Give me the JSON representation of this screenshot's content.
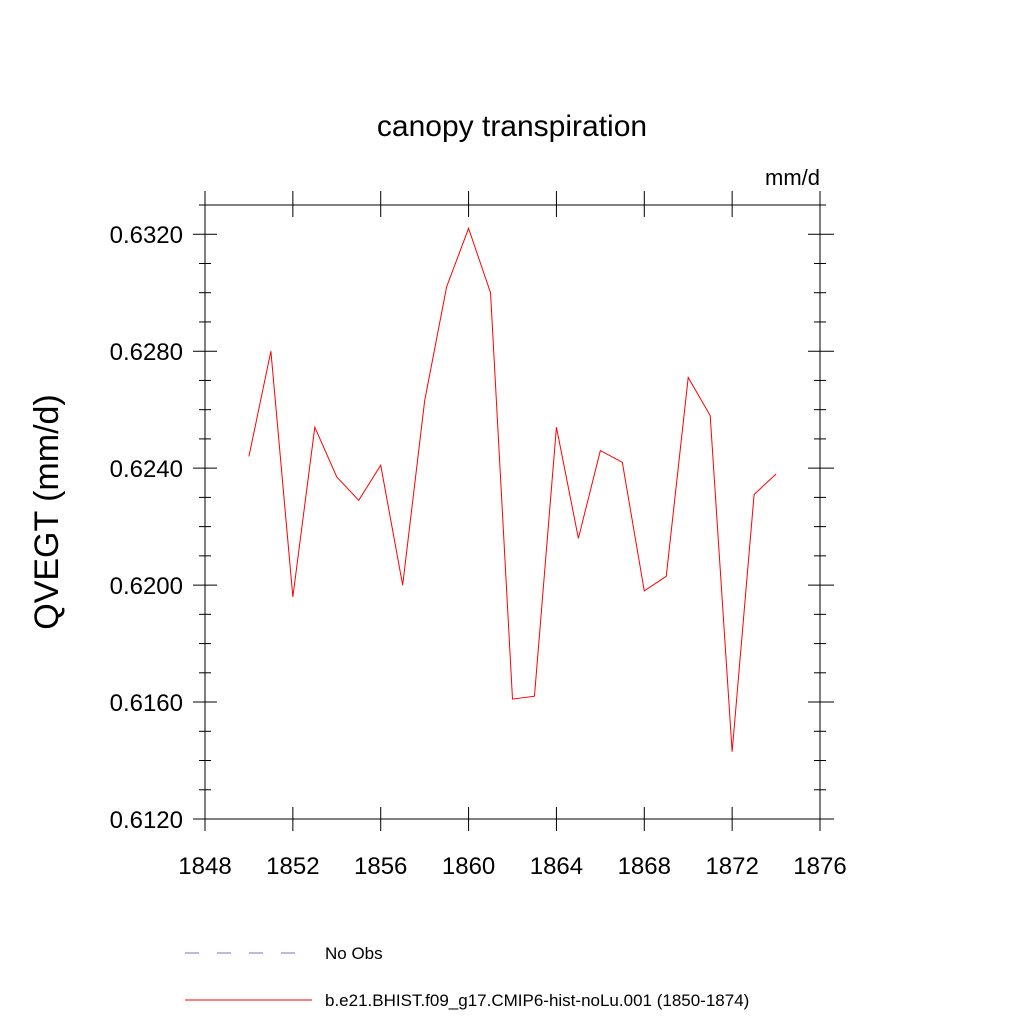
{
  "chart_data": {
    "type": "line",
    "title": "canopy transpiration",
    "units": "mm/d",
    "ylabel": "QVEGT  (mm/d)",
    "xlabel": "",
    "xlim": [
      1848,
      1876
    ],
    "ylim": [
      0.612,
      0.633
    ],
    "x_ticks": [
      1848,
      1852,
      1856,
      1860,
      1864,
      1868,
      1872,
      1876
    ],
    "x_tick_labels": [
      "1848",
      "1852",
      "1856",
      "1860",
      "1864",
      "1868",
      "1872",
      "1876"
    ],
    "y_ticks": [
      0.612,
      0.616,
      0.62,
      0.624,
      0.628,
      0.632
    ],
    "y_tick_labels": [
      "0.6120",
      "0.6160",
      "0.6200",
      "0.6240",
      "0.6280",
      "0.6320"
    ],
    "grid": false,
    "legend_position": "bottom",
    "series": [
      {
        "name": "b.e21.BHIST.f09_g17.CMIP6-hist-noLu.001 (1850-1874)",
        "color": "#ff0000",
        "style": "solid",
        "x": [
          1850,
          1851,
          1852,
          1853,
          1854,
          1855,
          1856,
          1857,
          1858,
          1859,
          1860,
          1861,
          1862,
          1863,
          1864,
          1865,
          1866,
          1867,
          1868,
          1869,
          1870,
          1871,
          1872,
          1873,
          1874
        ],
        "values": [
          0.6244,
          0.628,
          0.6196,
          0.6254,
          0.6237,
          0.6229,
          0.6241,
          0.62,
          0.6263,
          0.6302,
          0.6322,
          0.63,
          0.6161,
          0.6162,
          0.6254,
          0.6216,
          0.6246,
          0.6242,
          0.6198,
          0.6203,
          0.6271,
          0.6258,
          0.6143,
          0.6231,
          0.6238
        ]
      }
    ],
    "legend": [
      {
        "label": "No Obs",
        "color": "#7b6fd0",
        "style": "dashed"
      },
      {
        "label": "b.e21.BHIST.f09_g17.CMIP6-hist-noLu.001 (1850-1874)",
        "color": "#ff0000",
        "style": "solid"
      }
    ]
  }
}
